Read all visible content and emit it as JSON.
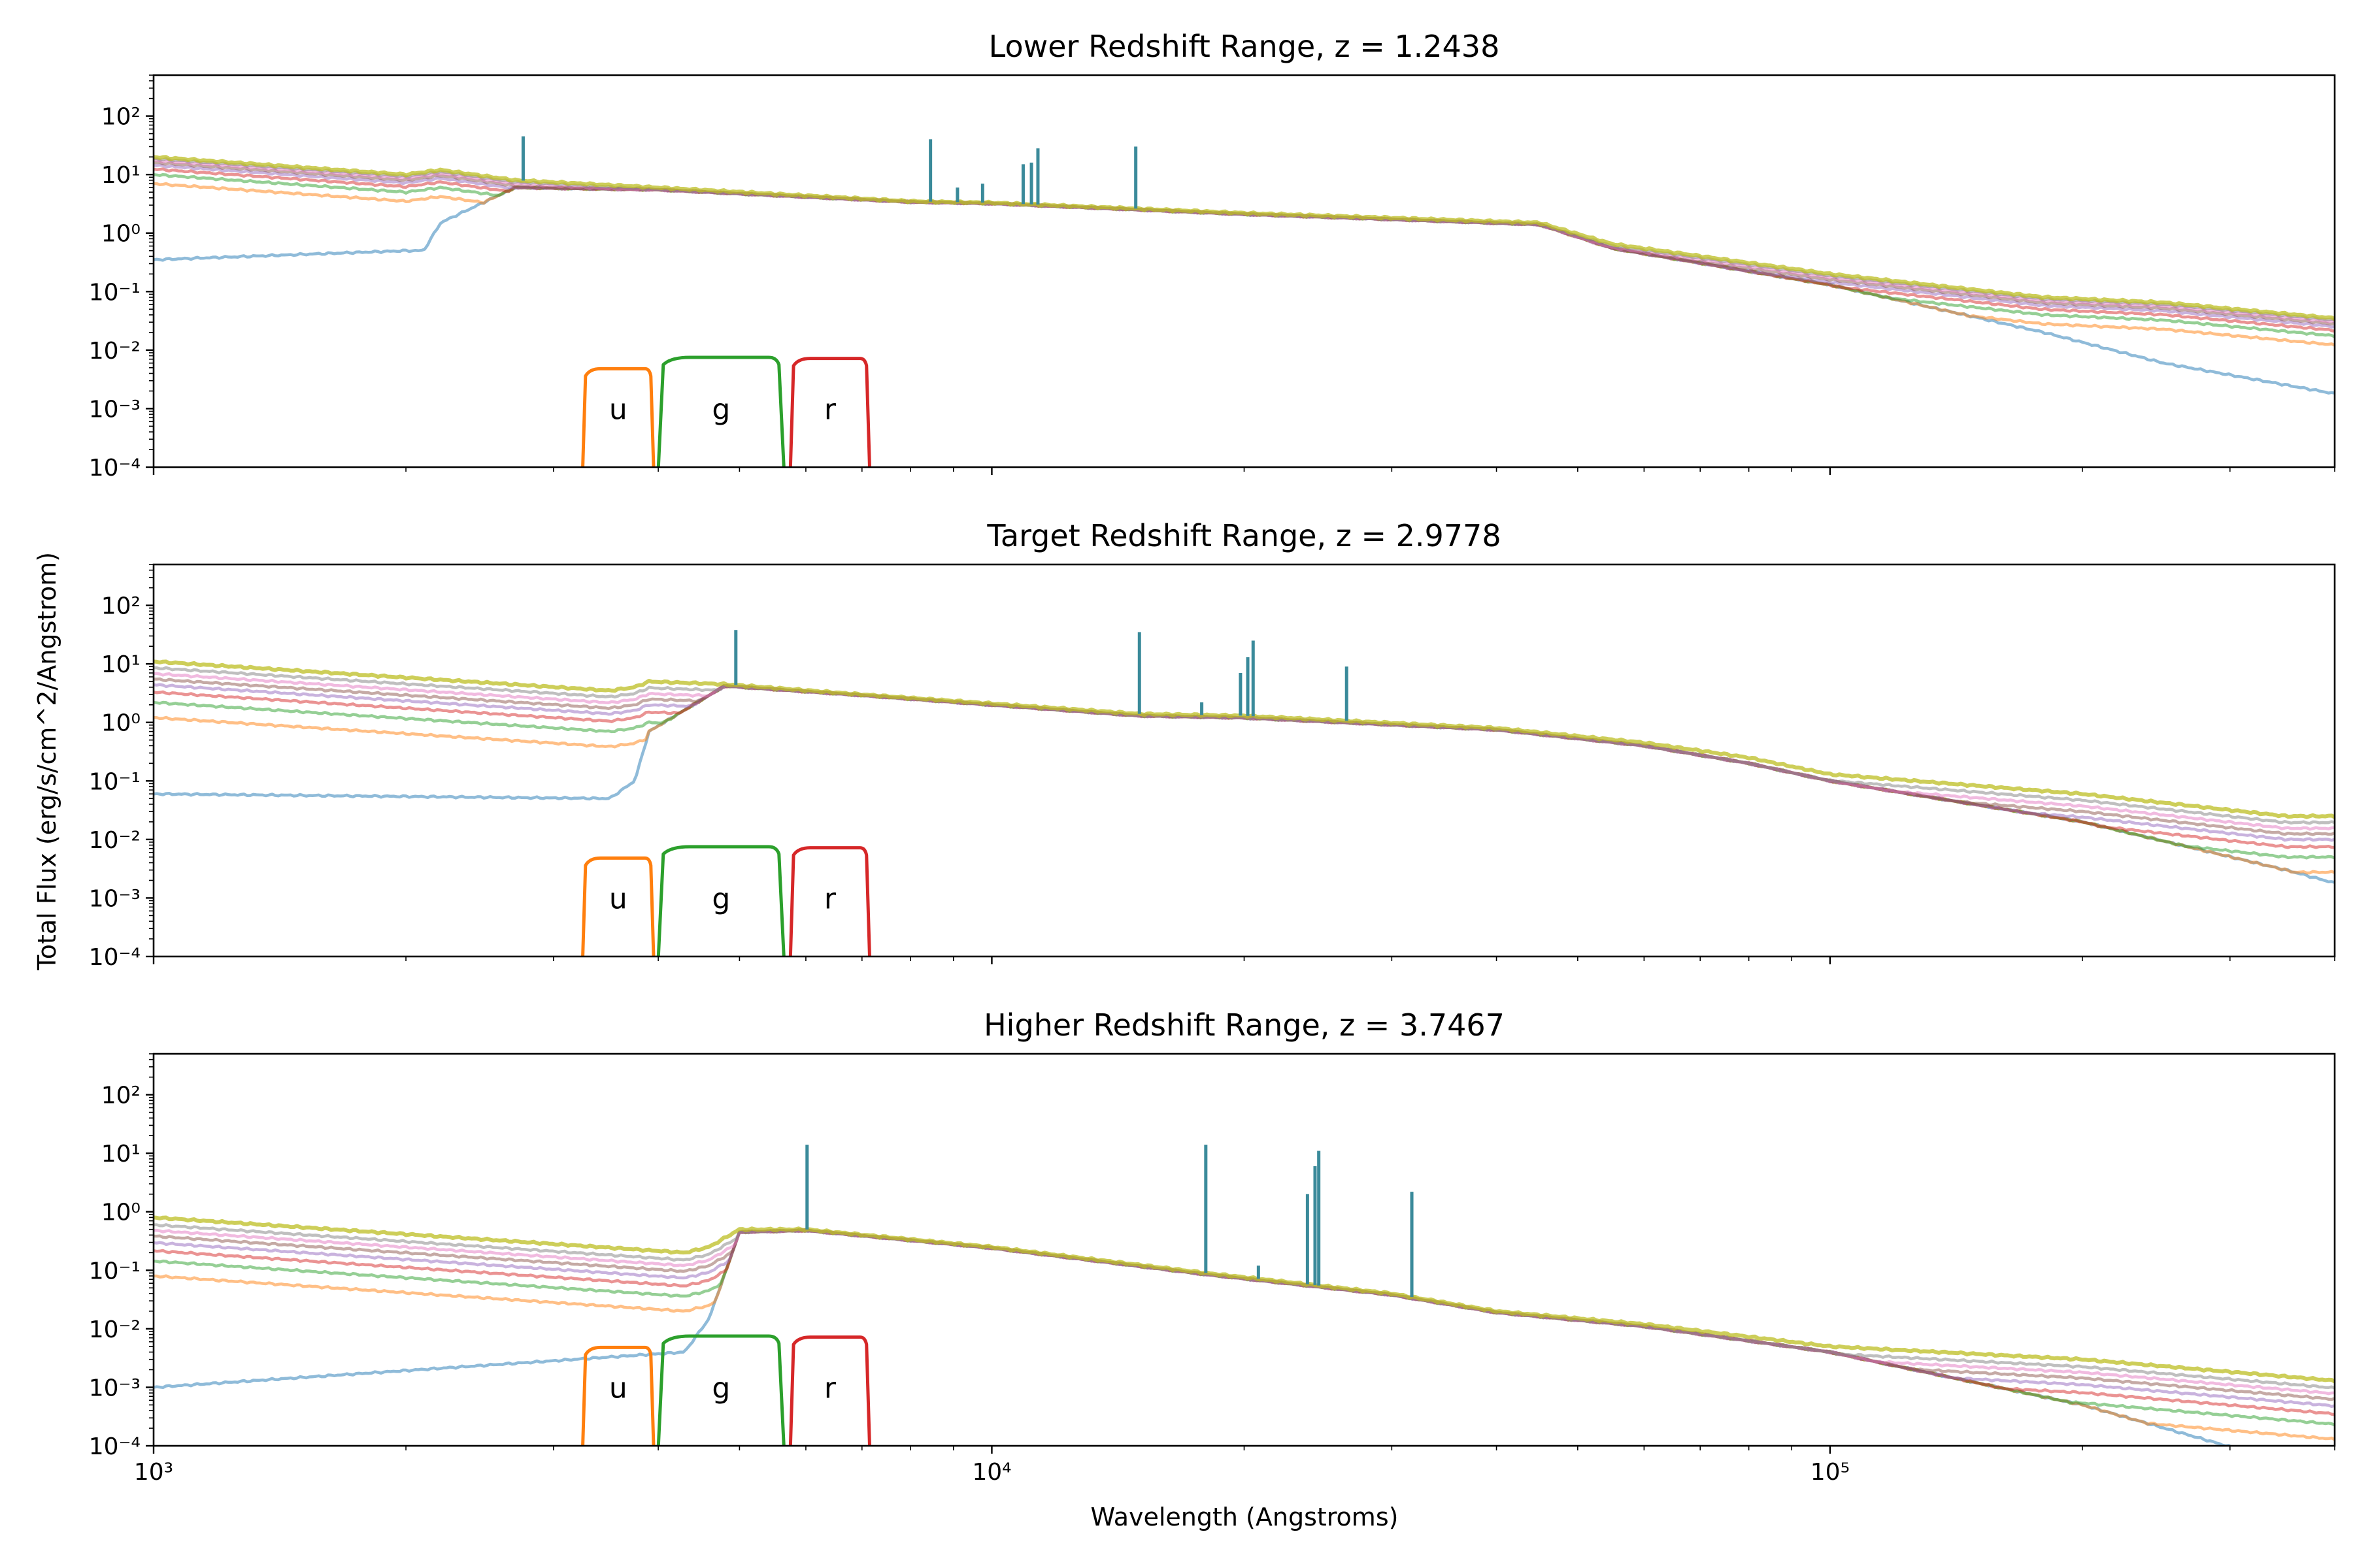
{
  "figure": {
    "ylabel": "Total Flux (erg/s/cm^2/Angstrom)",
    "xlabel": "Wavelength (Angstroms)"
  },
  "chart_data": [
    {
      "type": "line",
      "title": "Lower Redshift Range, z = 1.2438",
      "z": 1.2438,
      "xscale": "log",
      "yscale": "log",
      "xlim": [
        1000,
        400000
      ],
      "ylim": [
        0.0001,
        500
      ],
      "xticks": [
        "10^3",
        "10^4",
        "10^5"
      ],
      "yticks": [
        "10^-4",
        "10^-3",
        "10^-2",
        "10^-1",
        "10^0",
        "10^1",
        "10^2"
      ],
      "series_scales": [
        1,
        0.35,
        0.5,
        0.62,
        0.72,
        0.8,
        0.87,
        0.93,
        1.0
      ],
      "series_colors": [
        "#1f77b4",
        "#ff7f0e",
        "#2ca02c",
        "#d62728",
        "#9467bd",
        "#8c564b",
        "#e377c2",
        "#7f7f7f",
        "#bcbd22",
        "#17becf"
      ],
      "sed_anchors": {
        "x": [
          1000,
          2000,
          2100,
          2200,
          2700,
          4000,
          8000,
          10000,
          20000,
          45000,
          55000,
          100000,
          180000,
          250000,
          400000
        ],
        "y_top": [
          20,
          10,
          11,
          12,
          8,
          6,
          3.5,
          3.3,
          2.2,
          1.5,
          0.65,
          0.2,
          0.08,
          0.065,
          0.035
        ],
        "y_low": [
          0.35,
          0.5,
          0.5,
          1.5,
          6,
          5.5,
          3.4,
          3.2,
          2.1,
          1.4,
          0.55,
          0.13,
          0.02,
          0.006,
          0.0018
        ]
      },
      "emission_lines": [
        {
          "x": 2760,
          "peak": 45
        },
        {
          "x": 8450,
          "peak": 40
        },
        {
          "x": 9100,
          "peak": 6
        },
        {
          "x": 9750,
          "peak": 7
        },
        {
          "x": 10900,
          "peak": 15
        },
        {
          "x": 11150,
          "peak": 16
        },
        {
          "x": 11350,
          "peak": 28
        },
        {
          "x": 14850,
          "peak": 30
        }
      ]
    },
    {
      "type": "line",
      "title": "Target Redshift Range, z = 2.9778",
      "z": 2.9778,
      "xscale": "log",
      "yscale": "log",
      "xlim": [
        1000,
        400000
      ],
      "ylim": [
        0.0001,
        500
      ],
      "xticks": [
        "10^3",
        "10^4",
        "10^5"
      ],
      "yticks": [
        "10^-4",
        "10^-3",
        "10^-2",
        "10^-1",
        "10^0",
        "10^1",
        "10^2"
      ],
      "series_scales": [
        1,
        0.11,
        0.2,
        0.3,
        0.4,
        0.5,
        0.62,
        0.78,
        1.0
      ],
      "series_colors": [
        "#1f77b4",
        "#ff7f0e",
        "#2ca02c",
        "#d62728",
        "#9467bd",
        "#8c564b",
        "#e377c2",
        "#7f7f7f",
        "#bcbd22",
        "#17becf"
      ],
      "sed_anchors": {
        "x": [
          1000,
          3500,
          3750,
          3900,
          4800,
          7000,
          15000,
          20000,
          40000,
          60000,
          80000,
          100000,
          200000,
          350000,
          400000
        ],
        "y_top": [
          11,
          3.5,
          4,
          5,
          4.5,
          3,
          1.4,
          1.3,
          0.8,
          0.45,
          0.25,
          0.13,
          0.06,
          0.025,
          0.025
        ],
        "y_low": [
          0.06,
          0.05,
          0.1,
          0.7,
          4.2,
          2.9,
          1.3,
          1.2,
          0.75,
          0.4,
          0.2,
          0.1,
          0.02,
          0.003,
          0.0018
        ]
      },
      "emission_lines": [
        {
          "x": 4950,
          "peak": 38
        },
        {
          "x": 15000,
          "peak": 35
        },
        {
          "x": 17800,
          "peak": 2.2
        },
        {
          "x": 19800,
          "peak": 7
        },
        {
          "x": 20200,
          "peak": 13
        },
        {
          "x": 20500,
          "peak": 25
        },
        {
          "x": 26500,
          "peak": 9
        }
      ]
    },
    {
      "type": "line",
      "title": "Higher Redshift Range, z = 3.7467",
      "z": 3.7467,
      "xscale": "log",
      "yscale": "log",
      "xlim": [
        1000,
        400000
      ],
      "ylim": [
        0.0001,
        500
      ],
      "xticks": [
        "10^3",
        "10^4",
        "10^5"
      ],
      "yticks": [
        "10^-4",
        "10^-3",
        "10^-2",
        "10^-1",
        "10^0",
        "10^1",
        "10^2"
      ],
      "series_scales": [
        1,
        0.1,
        0.18,
        0.27,
        0.37,
        0.48,
        0.6,
        0.75,
        1.0
      ],
      "series_colors": [
        "#1f77b4",
        "#ff7f0e",
        "#2ca02c",
        "#d62728",
        "#9467bd",
        "#8c564b",
        "#e377c2",
        "#7f7f7f",
        "#bcbd22",
        "#17becf"
      ],
      "sed_anchors": {
        "x": [
          1000,
          4300,
          4600,
          5000,
          6000,
          10000,
          18000,
          30000,
          40000,
          60000,
          100000,
          200000,
          400000
        ],
        "y_top": [
          0.8,
          0.2,
          0.25,
          0.5,
          0.5,
          0.25,
          0.09,
          0.04,
          0.02,
          0.012,
          0.005,
          0.003,
          0.0013
        ],
        "y_low": [
          0.001,
          0.004,
          0.015,
          0.45,
          0.48,
          0.24,
          0.085,
          0.038,
          0.019,
          0.011,
          0.004,
          0.0005,
          3e-05
        ]
      },
      "emission_lines": [
        {
          "x": 6020,
          "peak": 14
        },
        {
          "x": 18000,
          "peak": 14
        },
        {
          "x": 20800,
          "peak": 0.12
        },
        {
          "x": 23800,
          "peak": 2
        },
        {
          "x": 24300,
          "peak": 6
        },
        {
          "x": 24550,
          "peak": 11
        },
        {
          "x": 31700,
          "peak": 2.2
        }
      ]
    }
  ],
  "filters": [
    {
      "name": "u",
      "color": "#ff7f0e",
      "lam_lo": 3250,
      "lam_hi": 3950,
      "peak": 0.0048
    },
    {
      "name": "g",
      "color": "#2ca02c",
      "lam_lo": 4000,
      "lam_hi": 5650,
      "peak": 0.0075
    },
    {
      "name": "r",
      "color": "#d62728",
      "lam_lo": 5750,
      "lam_hi": 7150,
      "peak": 0.0072
    }
  ]
}
